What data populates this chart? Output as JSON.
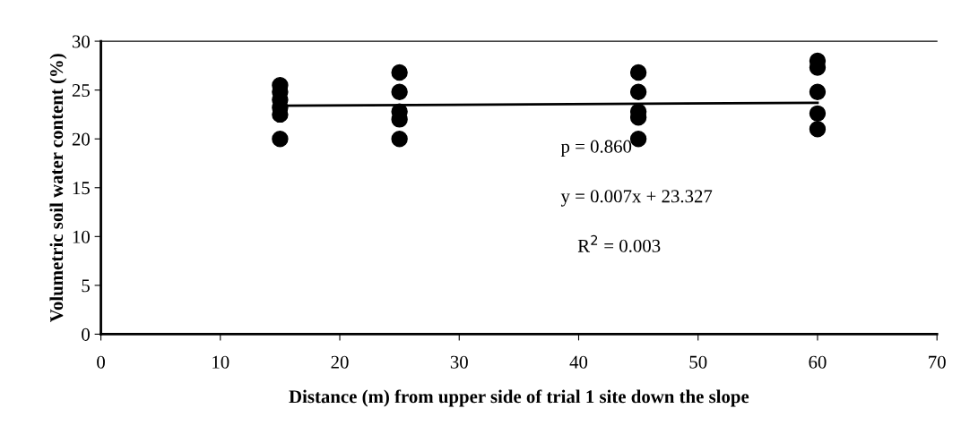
{
  "chart_data": {
    "type": "scatter",
    "xlabel": "Distance (m) from upper side of trial 1 site down the slope",
    "ylabel": "Volumetric soil water content (%)",
    "series": [
      {
        "color": "#000000",
        "marker": "circle",
        "x": [
          15,
          15,
          15,
          15,
          15,
          15,
          25,
          25,
          25,
          25,
          25,
          45,
          45,
          45,
          45,
          45,
          60,
          60,
          60,
          60,
          60
        ],
        "values": [
          25.5,
          24.8,
          24.0,
          23.2,
          22.5,
          20.0,
          26.8,
          24.8,
          22.8,
          22.0,
          20.0,
          26.8,
          24.8,
          22.8,
          22.2,
          20.0,
          28.0,
          27.3,
          24.8,
          22.6,
          21.0
        ]
      },
      {
        "type": "line",
        "color": "#000000",
        "x": [
          15,
          60
        ],
        "values": [
          23.4,
          23.7
        ]
      }
    ],
    "annotations": [
      {
        "text": "p = 0.860"
      },
      {
        "text": "y = 0.007x + 23.327"
      },
      {
        "text": "R$^{2}$ = 0.003"
      }
    ],
    "xlim": [
      0,
      70
    ],
    "xticks": [
      0,
      10,
      20,
      30,
      40,
      50,
      60,
      70
    ],
    "ylim": [
      0,
      30
    ],
    "yticks": [
      0,
      5,
      10,
      15,
      20,
      25,
      30
    ],
    "grid": false,
    "legend": false
  }
}
